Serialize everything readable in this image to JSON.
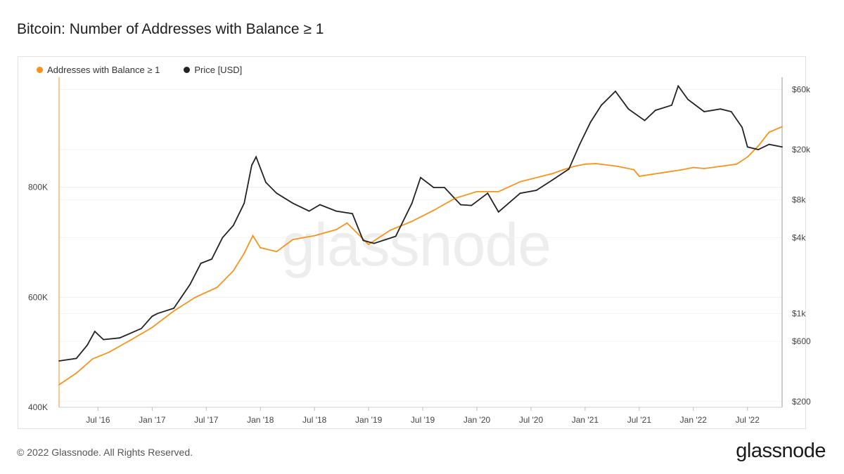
{
  "chart_data": {
    "type": "line",
    "title": "Bitcoin: Number of Addresses with Balance ≥ 1",
    "xlabel": "",
    "ylabel_left": "",
    "ylabel_right": "",
    "x_tick_labels": [
      "Jul '16",
      "Jan '17",
      "Jul '17",
      "Jan '18",
      "Jul '18",
      "Jan '19",
      "Jul '19",
      "Jan '20",
      "Jul '20",
      "Jan '21",
      "Jul '21",
      "Jan '22",
      "Jul '22"
    ],
    "x_range": [
      2016.14,
      2022.82
    ],
    "left_axis": {
      "scale": "linear",
      "ticks": [
        400000,
        600000,
        800000
      ],
      "tick_labels": [
        "400K",
        "600K",
        "800K"
      ],
      "range": [
        400000,
        1000000
      ]
    },
    "right_axis": {
      "scale": "log",
      "ticks": [
        200,
        600,
        1000,
        4000,
        8000,
        20000,
        60000
      ],
      "tick_labels": [
        "$200",
        "$600",
        "$1k",
        "$4k",
        "$8k",
        "$20k",
        "$60k"
      ],
      "range": [
        180,
        75000
      ]
    },
    "series": [
      {
        "name": "Addresses with Balance ≥ 1",
        "axis": "left",
        "color": "#f7931a",
        "x": [
          2016.14,
          2016.3,
          2016.45,
          2016.6,
          2016.8,
          2017.0,
          2017.2,
          2017.4,
          2017.6,
          2017.75,
          2017.85,
          2017.93,
          2018.0,
          2018.15,
          2018.3,
          2018.5,
          2018.7,
          2018.8,
          2019.0,
          2019.2,
          2019.4,
          2019.5,
          2019.6,
          2019.8,
          2020.0,
          2020.2,
          2020.4,
          2020.5,
          2020.7,
          2020.8,
          2020.9,
          2021.0,
          2021.1,
          2021.3,
          2021.45,
          2021.5,
          2021.7,
          2021.9,
          2022.0,
          2022.1,
          2022.25,
          2022.4,
          2022.5,
          2022.6,
          2022.7,
          2022.82
        ],
        "values": [
          441000,
          462000,
          488000,
          500000,
          522000,
          545000,
          575000,
          600000,
          618000,
          648000,
          680000,
          712000,
          690000,
          683000,
          705000,
          712000,
          723000,
          735000,
          696000,
          722000,
          738000,
          748000,
          758000,
          780000,
          792000,
          792000,
          810000,
          815000,
          825000,
          832000,
          838000,
          842000,
          843000,
          838000,
          832000,
          820000,
          826000,
          832000,
          836000,
          834000,
          838000,
          842000,
          855000,
          875000,
          900000,
          910000
        ]
      },
      {
        "name": "Price [USD]",
        "axis": "right",
        "color": "#222222",
        "x": [
          2016.14,
          2016.3,
          2016.4,
          2016.47,
          2016.55,
          2016.7,
          2016.9,
          2017.0,
          2017.05,
          2017.2,
          2017.35,
          2017.45,
          2017.55,
          2017.65,
          2017.75,
          2017.85,
          2017.92,
          2017.96,
          2018.05,
          2018.15,
          2018.3,
          2018.45,
          2018.55,
          2018.7,
          2018.85,
          2018.95,
          2019.05,
          2019.25,
          2019.4,
          2019.48,
          2019.6,
          2019.7,
          2019.85,
          2019.95,
          2020.1,
          2020.2,
          2020.4,
          2020.55,
          2020.7,
          2020.85,
          2020.95,
          2021.05,
          2021.15,
          2021.28,
          2021.4,
          2021.55,
          2021.65,
          2021.8,
          2021.86,
          2021.95,
          2022.1,
          2022.25,
          2022.35,
          2022.45,
          2022.5,
          2022.6,
          2022.7,
          2022.82
        ],
        "values": [
          420,
          440,
          560,
          720,
          620,
          640,
          760,
          950,
          1000,
          1100,
          1700,
          2500,
          2700,
          4000,
          5000,
          7500,
          15000,
          17500,
          11000,
          9000,
          7500,
          6500,
          7300,
          6500,
          6200,
          3800,
          3600,
          4100,
          7500,
          12000,
          10000,
          10000,
          7300,
          7200,
          9000,
          6400,
          9000,
          9500,
          11500,
          14000,
          22000,
          33000,
          45000,
          58000,
          42000,
          34000,
          41000,
          45000,
          64000,
          50000,
          40000,
          42000,
          40000,
          30000,
          21000,
          20000,
          22000,
          21000
        ]
      }
    ]
  },
  "legend": {
    "addresses_label": "Addresses with Balance ≥ 1",
    "price_label": "Price [USD]"
  },
  "footer": {
    "copyright": "© 2022 Glassnode. All Rights Reserved.",
    "brand": "glassnode",
    "watermark": "glassnode"
  }
}
